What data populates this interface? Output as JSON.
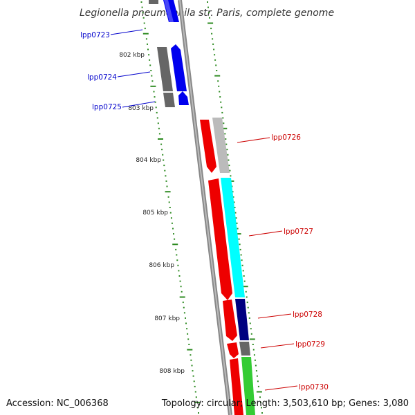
{
  "title": "Legionella pneumophila str. Paris, complete genome",
  "footer": {
    "accession": "Accession: NC_006368",
    "summary": "Topology: circular; Length: 3,503,610 bp; Genes: 3,080"
  },
  "kbp_labels": [
    "802 kbp",
    "803 kbp",
    "804 kbp",
    "805 kbp",
    "806 kbp",
    "807 kbp",
    "808 kbp"
  ],
  "genes_left": [
    "lpp0723",
    "lpp0724",
    "lpp0725"
  ],
  "genes_right": [
    "lpp0726",
    "lpp0727",
    "lpp0728",
    "lpp0729",
    "lpp0730"
  ],
  "colors": {
    "left_label": "#0000cc",
    "right_label": "#cc0000",
    "tick": "#2e8b22",
    "backbone": "#888888",
    "blue": "#0000ee",
    "red": "#ee0000",
    "cyan": "#00ffff",
    "navy": "#000080",
    "green": "#33cc33",
    "gray_dark": "#666666",
    "gray_light": "#bbbbbb"
  }
}
